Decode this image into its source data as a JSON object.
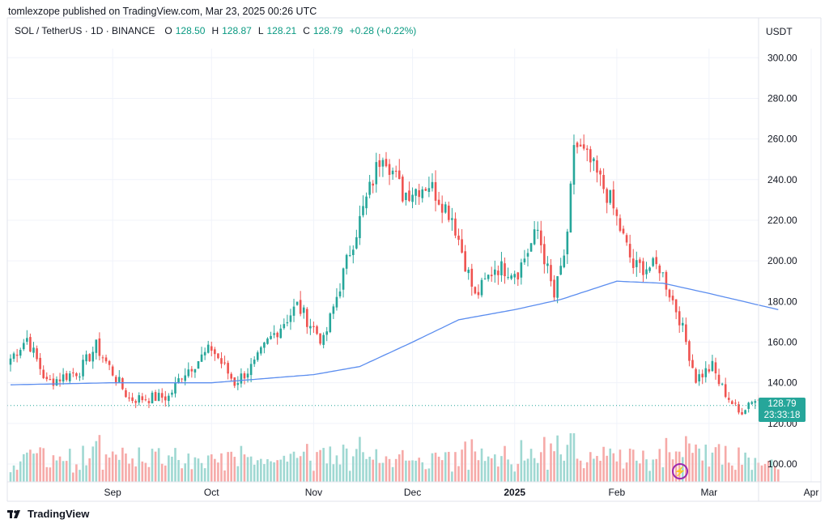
{
  "header": {
    "published": "tomlexzope published on TradingView.com, Mar 23, 2025 00:26 UTC"
  },
  "legend": {
    "symbol": "SOL / TetherUS · 1D · BINANCE",
    "open_label": "O",
    "open": "128.50",
    "high_label": "H",
    "high": "128.87",
    "low_label": "L",
    "low": "128.21",
    "close_label": "C",
    "close": "128.79",
    "change": "+0.28 (+0.22%)"
  },
  "currency": "USDT",
  "price_tag": {
    "price": "128.79",
    "countdown": "23:33:18"
  },
  "footer": {
    "brand": "TradingView"
  },
  "colors": {
    "up": "#26a69a",
    "down": "#ef5350",
    "ma": "#5b8def",
    "vol_up": "#9fd8d2",
    "vol_down": "#f6aaa8"
  },
  "chart_data": {
    "type": "candlestick",
    "title": "SOL / TetherUS · 1D · BINANCE",
    "y_ticks": [
      "300.00",
      "280.00",
      "260.00",
      "240.00",
      "220.00",
      "200.00",
      "180.00",
      "160.00",
      "140.00",
      "120.00",
      "100.00"
    ],
    "x_ticks": [
      "Sep",
      "Oct",
      "Nov",
      "Dec",
      "2025",
      "Feb",
      "Mar",
      "Apr"
    ],
    "ylim": [
      91,
      309
    ],
    "grid": true,
    "last_price": 128.79,
    "series": [
      {
        "type": "ohlc_anchors",
        "points": [
          {
            "date": "2024-08-01",
            "close": 152
          },
          {
            "date": "2024-08-06",
            "close": 162
          },
          {
            "date": "2024-08-12",
            "close": 140
          },
          {
            "date": "2024-08-22",
            "close": 146
          },
          {
            "date": "2024-08-27",
            "close": 158
          },
          {
            "date": "2024-09-06",
            "close": 132
          },
          {
            "date": "2024-09-18",
            "close": 133
          },
          {
            "date": "2024-09-22",
            "close": 144
          },
          {
            "date": "2024-10-01",
            "close": 157
          },
          {
            "date": "2024-10-08",
            "close": 140
          },
          {
            "date": "2024-10-14",
            "close": 149
          },
          {
            "date": "2024-10-18",
            "close": 160
          },
          {
            "date": "2024-10-27",
            "close": 178
          },
          {
            "date": "2024-11-04",
            "close": 160
          },
          {
            "date": "2024-11-12",
            "close": 205
          },
          {
            "date": "2024-11-22",
            "close": 255
          },
          {
            "date": "2024-11-28",
            "close": 233
          },
          {
            "date": "2024-12-06",
            "close": 238
          },
          {
            "date": "2024-12-13",
            "close": 222
          },
          {
            "date": "2024-12-20",
            "close": 182
          },
          {
            "date": "2024-12-26",
            "close": 197
          },
          {
            "date": "2025-01-02",
            "close": 195
          },
          {
            "date": "2025-01-08",
            "close": 215
          },
          {
            "date": "2025-01-13",
            "close": 182
          },
          {
            "date": "2025-01-17",
            "close": 210
          },
          {
            "date": "2025-01-19",
            "close": 258
          },
          {
            "date": "2025-01-24",
            "close": 248
          },
          {
            "date": "2025-01-30",
            "close": 230
          },
          {
            "date": "2025-02-06",
            "close": 197
          },
          {
            "date": "2025-02-14",
            "close": 197
          },
          {
            "date": "2025-02-20",
            "close": 172
          },
          {
            "date": "2025-02-25",
            "close": 142
          },
          {
            "date": "2025-03-02",
            "close": 148
          },
          {
            "date": "2025-03-04",
            "close": 140
          },
          {
            "date": "2025-03-10",
            "close": 125
          },
          {
            "date": "2025-03-14",
            "close": 132
          },
          {
            "date": "2025-03-22",
            "close": 128.79
          }
        ]
      },
      {
        "type": "moving_average",
        "points": [
          {
            "date": "2024-08-01",
            "value": 139
          },
          {
            "date": "2024-09-01",
            "value": 140
          },
          {
            "date": "2024-10-01",
            "value": 140
          },
          {
            "date": "2024-11-01",
            "value": 144
          },
          {
            "date": "2024-11-15",
            "value": 148
          },
          {
            "date": "2024-12-01",
            "value": 160
          },
          {
            "date": "2024-12-15",
            "value": 171
          },
          {
            "date": "2025-01-01",
            "value": 176
          },
          {
            "date": "2025-01-15",
            "value": 181
          },
          {
            "date": "2025-02-01",
            "value": 190
          },
          {
            "date": "2025-02-15",
            "value": 189
          },
          {
            "date": "2025-03-01",
            "value": 184
          },
          {
            "date": "2025-03-22",
            "value": 176
          }
        ]
      }
    ]
  }
}
